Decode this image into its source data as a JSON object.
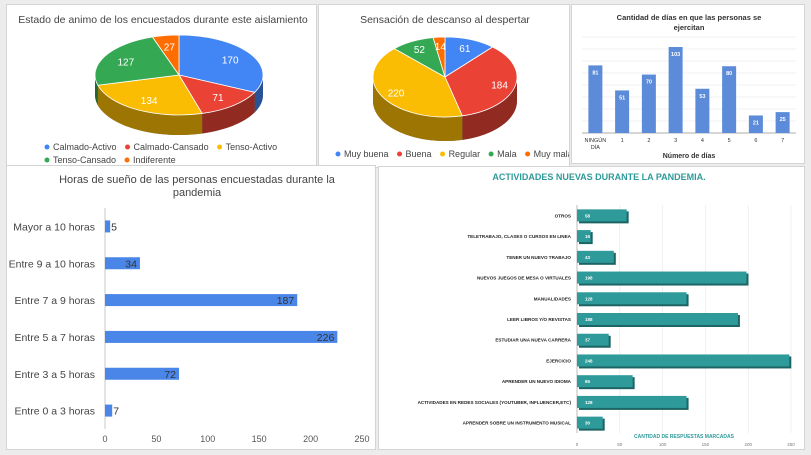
{
  "chart_data": [
    {
      "type": "pie",
      "title": "Estado de animo de los encuestados durante este aislamiento",
      "categories": [
        "Calmado-Activo",
        "Calmado-Cansado",
        "Tenso-Activo",
        "Tenso-Cansado",
        "Indiferente"
      ],
      "values": [
        170,
        71,
        134,
        127,
        27
      ],
      "colors": [
        "#4285f4",
        "#ea4335",
        "#fbbc04",
        "#34a853",
        "#ff6d01"
      ],
      "legend_position": "bottom"
    },
    {
      "type": "pie",
      "title": "Sensación de descanso al despertar",
      "categories": [
        "Muy buena",
        "Buena",
        "Regular",
        "Mala",
        "Muy mala"
      ],
      "values": [
        61,
        184,
        220,
        52,
        14
      ],
      "colors": [
        "#4285f4",
        "#ea4335",
        "#fbbc04",
        "#34a853",
        "#ff6d01"
      ],
      "legend_position": "bottom"
    },
    {
      "type": "bar",
      "title": "Cantidad de días en que las personas se ejercitan",
      "xlabel": "Número de días",
      "categories": [
        "NINGÚN DÍA",
        "1",
        "2",
        "3",
        "4",
        "5",
        "6",
        "7"
      ],
      "values": [
        81,
        51,
        70,
        103,
        53,
        80,
        21,
        25
      ],
      "color": "#5b8bd9",
      "grid": true
    },
    {
      "type": "bar",
      "orientation": "horizontal",
      "title": "Horas de sueño de las personas encuestadas durante la pandemia",
      "categories": [
        "Mayor a 10 horas",
        "Entre 9 a 10 horas",
        "Entre 7 a 9 horas",
        "Entre 5 a 7 horas",
        "Entre 3 a 5 horas",
        "Entre 0 a 3 horas"
      ],
      "values": [
        5,
        34,
        187,
        226,
        72,
        7
      ],
      "xlim": [
        0,
        250
      ],
      "xticks": [
        0,
        50,
        100,
        150,
        200,
        250
      ],
      "color": "#4a86e8",
      "grid": false
    },
    {
      "type": "bar",
      "orientation": "horizontal",
      "title": "ACTIVIDADES NUEVAS DURANTE LA PANDEMIA.",
      "xlabel": "CANTIDAD DE RESPUESTAS MARCADAS",
      "categories": [
        "OTROS",
        "TELETRABAJO, CLASES O CURSOS EN LINEA",
        "TENER UN NUEVO TRABAJO",
        "NUEVOS JUEGOS DE MESA O VIRTUALES",
        "MANUALIDADES",
        "LEER LIBROS Y/O REVISTAS",
        "ESTUDIAR UNA NUEVA CARRERA",
        "EJERCICIO",
        "APRENDER UN NUEVO IDIOMA",
        "ACTIVIDADES EN REDES SOCIALES (YOUTUBER, INFLUENCER,ETC)",
        "APRENDER SOBRE UN INSTRUMENTO MUSICAL"
      ],
      "values": [
        58,
        16,
        43,
        198,
        128,
        188,
        37,
        248,
        65,
        128,
        30
      ],
      "xlim": [
        0,
        250
      ],
      "xticks": [
        0,
        50,
        100,
        150,
        200,
        250
      ],
      "color": "#2e9a9a",
      "grid": true
    }
  ]
}
